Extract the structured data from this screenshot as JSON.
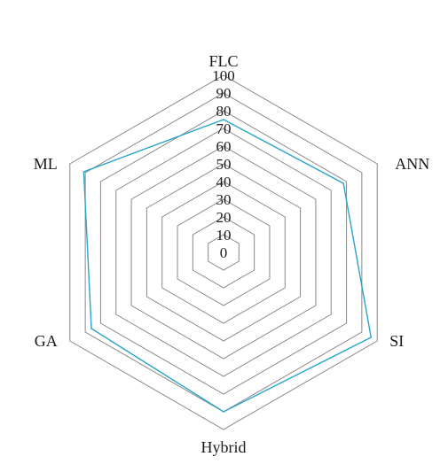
{
  "chart_data": {
    "type": "radar",
    "title": "",
    "axes": [
      "FLC",
      "ANN",
      "SI",
      "Hybrid",
      "GA",
      "ML"
    ],
    "ticks": [
      "0",
      "10",
      "20",
      "30",
      "40",
      "50",
      "60",
      "70",
      "80",
      "90",
      "100"
    ],
    "range": [
      0,
      100
    ],
    "grid": true,
    "series": [
      {
        "values": [
          75,
          78,
          96,
          90,
          86,
          91
        ],
        "color": "#2aa5c9"
      }
    ],
    "grid_color": "#888888"
  }
}
